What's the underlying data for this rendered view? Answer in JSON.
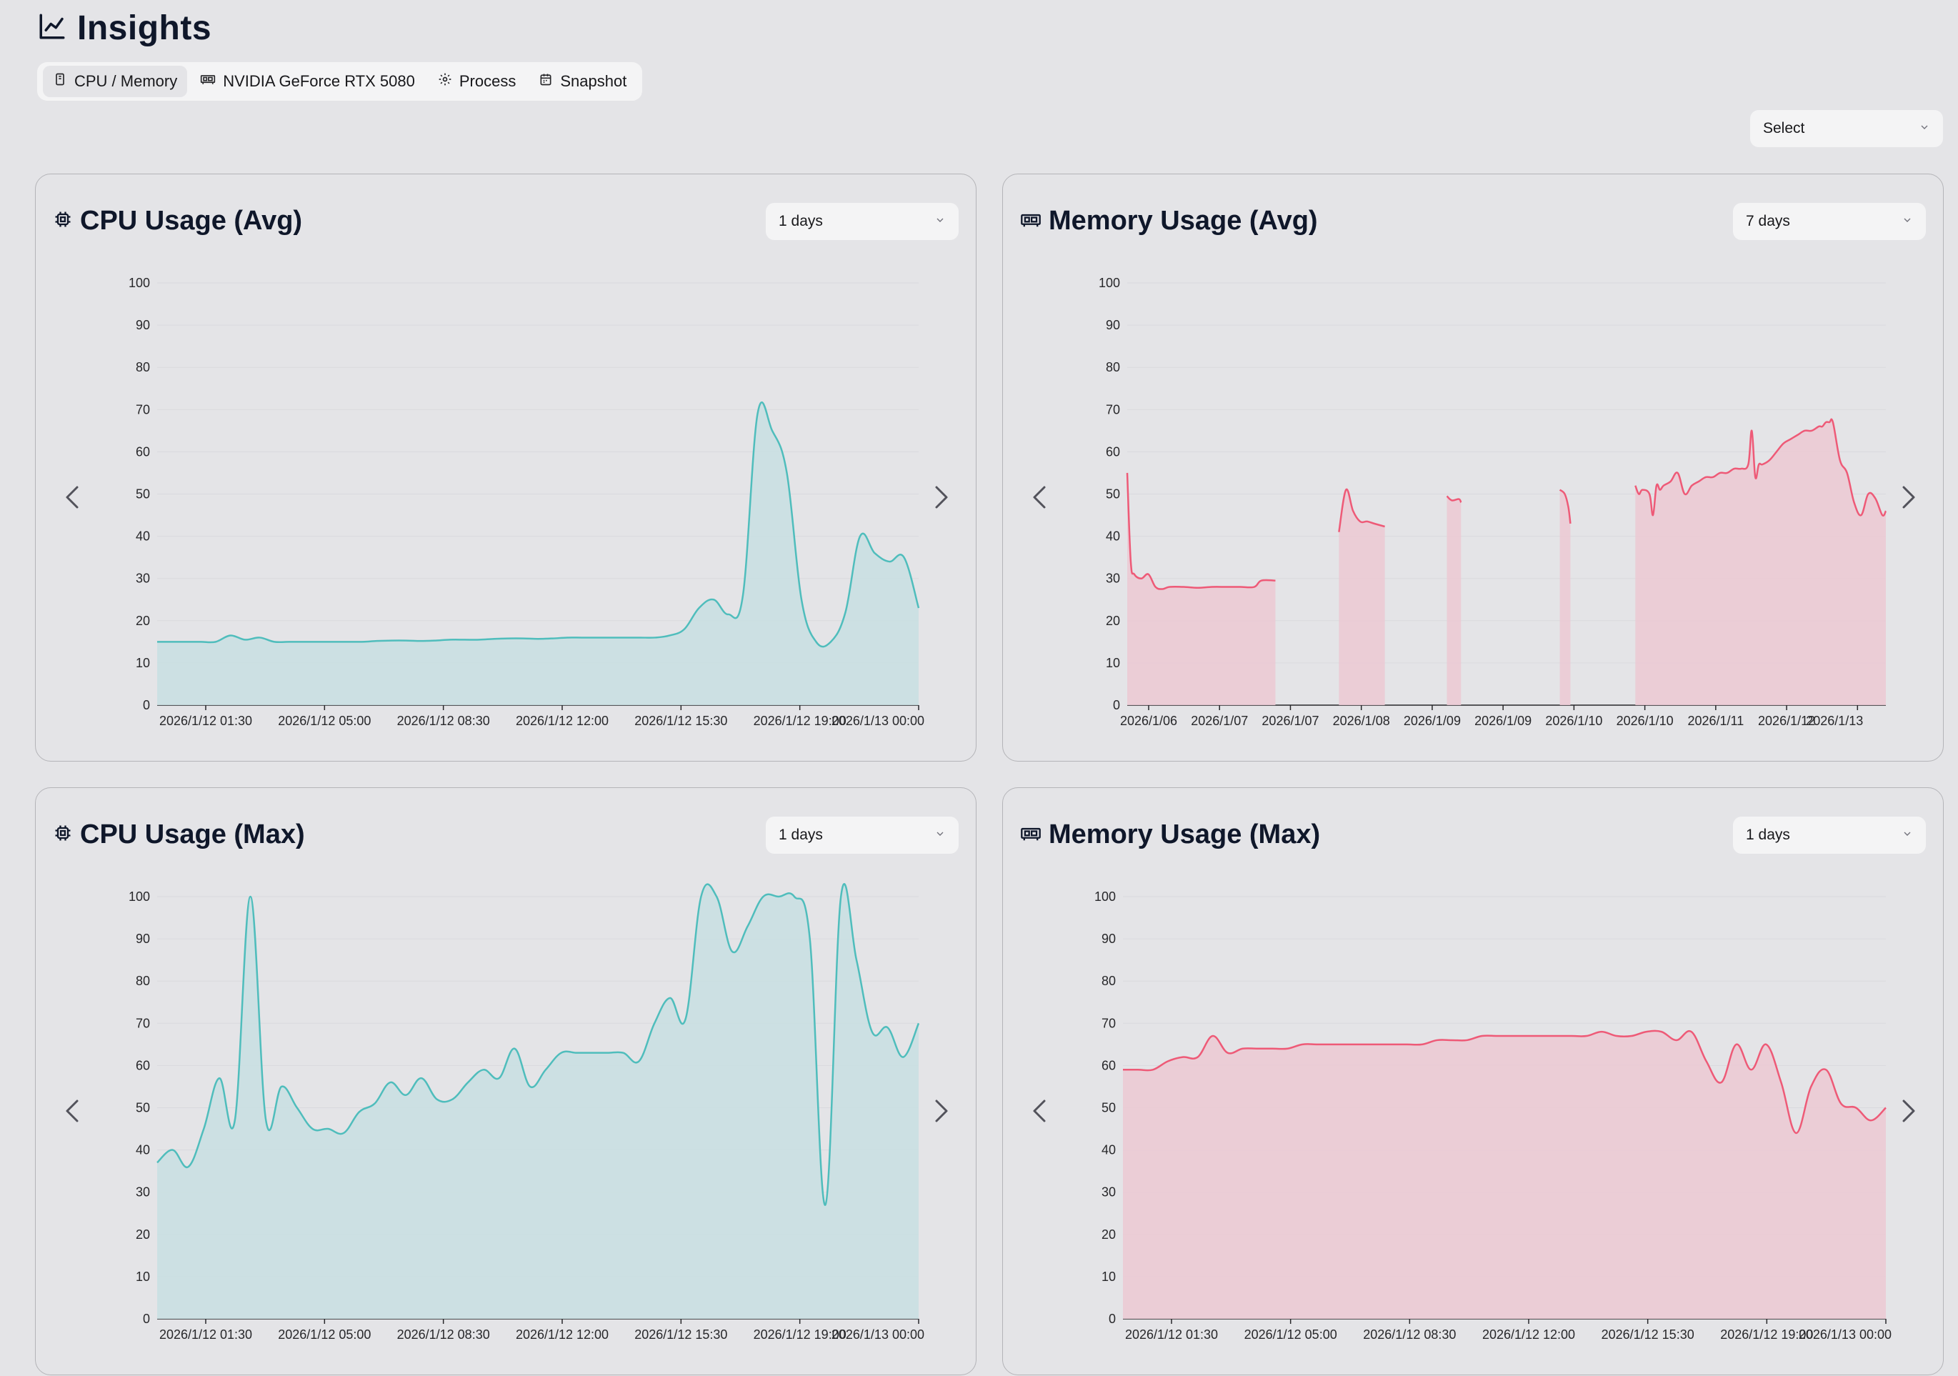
{
  "header": {
    "title": "Insights",
    "icon": "line-chart-icon"
  },
  "tabs": [
    {
      "label": "CPU / Memory",
      "icon": "cpu-icon",
      "active": true
    },
    {
      "label": "NVIDIA GeForce RTX 5080",
      "icon": "gpu-icon",
      "active": false
    },
    {
      "label": "Process",
      "icon": "gear-icon",
      "active": false
    },
    {
      "label": "Snapshot",
      "icon": "calendar-icon",
      "active": false
    }
  ],
  "global_select": {
    "value": "Select"
  },
  "colors": {
    "cpu": "#4fbdbc",
    "cpu_fill": "#c9dfe2",
    "memory": "#ee5a77",
    "memory_fill": "#ebcad4"
  },
  "cards": [
    {
      "title": "CPU Usage (Avg)",
      "range": "1 days",
      "icon": "cpu-icon"
    },
    {
      "title": "Memory Usage (Avg)",
      "range": "7 days",
      "icon": "memory-icon"
    },
    {
      "title": "CPU Usage (Max)",
      "range": "1 days",
      "icon": "cpu-icon"
    },
    {
      "title": "Memory Usage (Max)",
      "range": "1 days",
      "icon": "memory-icon"
    }
  ],
  "chart_data": [
    {
      "type": "area",
      "title": "CPU Usage (Avg)",
      "series": [
        {
          "values": [
            15,
            15,
            15,
            15,
            15,
            16.5,
            15.5,
            16,
            15,
            15,
            15,
            15,
            15,
            15,
            15,
            15.2,
            15.3,
            15.3,
            15.2,
            15.3,
            15.5,
            15.5,
            15.5,
            15.7,
            15.8,
            15.8,
            15.7,
            15.8,
            16,
            16,
            16,
            16,
            16,
            16,
            16,
            16.5,
            18,
            23,
            25,
            21.5,
            26,
            69,
            65,
            55,
            25,
            15,
            15,
            22,
            40,
            36,
            34,
            35,
            23
          ]
        }
      ],
      "x_ticks": [
        "2026/1/12 01:30",
        "2026/1/12 05:00",
        "2026/1/12 08:30",
        "2026/1/12 12:00",
        "2026/1/12 15:30",
        "2026/1/12 19:00",
        "2026/1/13 00:00"
      ],
      "y_ticks": [
        "0",
        "10",
        "20",
        "30",
        "40",
        "50",
        "60",
        "70",
        "80",
        "90",
        "100"
      ],
      "ylim": [
        0,
        100
      ],
      "grid": true
    },
    {
      "type": "area",
      "title": "Memory Usage (Avg)",
      "series": [
        {
          "x": [
            0,
            0.5,
            1,
            2,
            3,
            4,
            5,
            6,
            8,
            10,
            12,
            14,
            16,
            18,
            19,
            21
          ],
          "values": [
            55,
            34,
            31,
            30,
            31,
            28,
            27.5,
            28,
            28,
            27.8,
            28,
            28,
            28,
            28,
            29.5,
            29.5
          ]
        },
        {
          "x": [
            30,
            31,
            32,
            33,
            34,
            35,
            36.5
          ],
          "values": [
            41,
            51,
            46,
            43.5,
            43.5,
            43,
            42.3
          ]
        },
        {
          "x": [
            45.3,
            46,
            47,
            47.3
          ],
          "values": [
            49.5,
            48.5,
            48.8,
            48
          ]
        },
        {
          "x": [
            61.3,
            62,
            62.5,
            62.8
          ],
          "values": [
            51,
            50,
            47,
            43
          ]
        },
        {
          "x": [
            72,
            72.5,
            73,
            74,
            74.5,
            75,
            75.5,
            76,
            77,
            78,
            79,
            80,
            81,
            82,
            83,
            84,
            85,
            86,
            87,
            88,
            88.5,
            89,
            89.5,
            90,
            91,
            92,
            93,
            94,
            95,
            96,
            97,
            98,
            98.5,
            99,
            99.5,
            100,
            101,
            102,
            103,
            104,
            105,
            106,
            107,
            107.5
          ],
          "values": [
            52,
            50,
            51,
            50,
            45,
            52,
            51,
            52,
            53,
            55,
            50,
            52,
            53,
            54,
            54,
            55,
            55,
            56,
            56,
            57,
            65,
            54,
            57,
            57,
            58,
            60,
            62,
            63,
            64,
            65,
            65,
            66,
            66,
            67,
            67,
            67,
            58,
            55,
            48,
            45,
            50,
            49,
            45,
            46
          ]
        }
      ],
      "x_ticks": [
        "2026/1/06",
        "2026/1/07",
        "2026/1/07",
        "2026/1/08",
        "2026/1/09",
        "2026/1/09",
        "2026/1/10",
        "2026/1/10",
        "2026/1/11",
        "2026/1/12",
        "2026/1/13"
      ],
      "y_ticks": [
        "0",
        "10",
        "20",
        "30",
        "40",
        "50",
        "60",
        "70",
        "80",
        "90",
        "100"
      ],
      "ylim": [
        0,
        100
      ],
      "grid": true
    },
    {
      "type": "area",
      "title": "CPU Usage (Max)",
      "series": [
        {
          "values": [
            37,
            40,
            36,
            45,
            57,
            47,
            100,
            47,
            55,
            50,
            45,
            45,
            44,
            49,
            51,
            56,
            53,
            57,
            52,
            52,
            56,
            59,
            57,
            64,
            55,
            59,
            63,
            63,
            63,
            63,
            63,
            61,
            70,
            76,
            71,
            100,
            100,
            87,
            93,
            100,
            100,
            100,
            90,
            27,
            100,
            85,
            68,
            69,
            62,
            70
          ]
        }
      ],
      "x_ticks": [
        "2026/1/12 01:30",
        "2026/1/12 05:00",
        "2026/1/12 08:30",
        "2026/1/12 12:00",
        "2026/1/12 15:30",
        "2026/1/12 19:00",
        "2026/1/13 00:00"
      ],
      "y_ticks": [
        "0",
        "10",
        "20",
        "30",
        "40",
        "50",
        "60",
        "70",
        "80",
        "90",
        "100"
      ],
      "ylim": [
        0,
        100
      ],
      "grid": true
    },
    {
      "type": "area",
      "title": "Memory Usage (Max)",
      "series": [
        {
          "values": [
            59,
            59,
            59,
            61,
            62,
            62,
            67,
            63,
            64,
            64,
            64,
            64,
            65,
            65,
            65,
            65,
            65,
            65,
            65,
            65,
            65,
            66,
            66,
            66,
            67,
            67,
            67,
            67,
            67,
            67,
            67,
            67,
            68,
            67,
            67,
            68,
            68,
            66,
            68,
            61,
            56,
            65,
            59,
            65,
            56,
            44,
            55,
            59,
            51,
            50,
            47,
            50
          ]
        }
      ],
      "x_ticks": [
        "2026/1/12 01:30",
        "2026/1/12 05:00",
        "2026/1/12 08:30",
        "2026/1/12 12:00",
        "2026/1/12 15:30",
        "2026/1/12 19:00",
        "2026/1/13 00:00"
      ],
      "y_ticks": [
        "0",
        "10",
        "20",
        "30",
        "40",
        "50",
        "60",
        "70",
        "80",
        "90",
        "100"
      ],
      "ylim": [
        0,
        100
      ],
      "grid": true
    }
  ]
}
